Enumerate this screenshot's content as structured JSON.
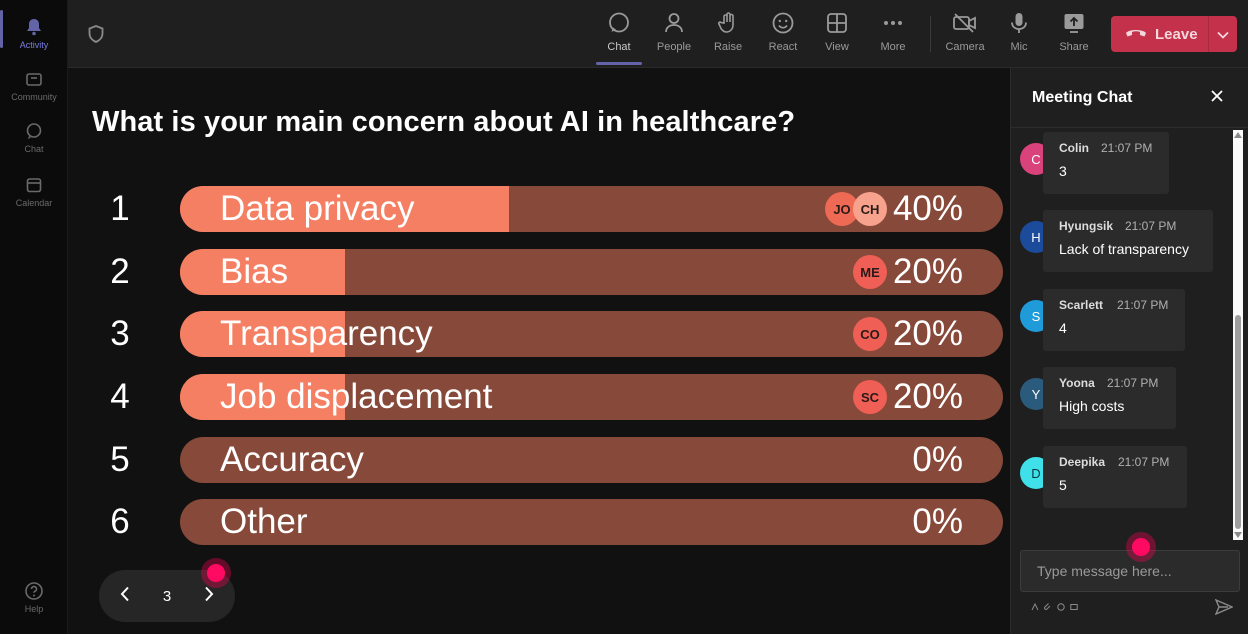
{
  "rail": {
    "items": [
      {
        "label": "Activity",
        "icon": "bell-icon"
      },
      {
        "label": "Community",
        "icon": "community-icon"
      },
      {
        "label": "Chat",
        "icon": "chat-icon"
      },
      {
        "label": "Calendar",
        "icon": "calendar-icon"
      }
    ],
    "help_label": "Help"
  },
  "toolbar": {
    "buttons": [
      {
        "label": "Chat",
        "icon": "chat-bubble-icon"
      },
      {
        "label": "People",
        "icon": "people-icon"
      },
      {
        "label": "Raise",
        "icon": "hand-icon"
      },
      {
        "label": "React",
        "icon": "smile-icon"
      },
      {
        "label": "View",
        "icon": "grid-icon"
      },
      {
        "label": "More",
        "icon": "more-icon"
      },
      {
        "label": "Camera",
        "icon": "camera-off-icon"
      },
      {
        "label": "Mic",
        "icon": "mic-icon"
      },
      {
        "label": "Share",
        "icon": "share-icon"
      }
    ],
    "leave_label": "Leave"
  },
  "poll": {
    "question": "What is your main concern about AI in healthcare?",
    "options": [
      {
        "num": "1",
        "label": "Data privacy",
        "pct": "40%",
        "fraction": 0.4,
        "voters": [
          {
            "initials": "JO",
            "color": "#ef6a55"
          },
          {
            "initials": "CH",
            "color": "#f7a28d"
          }
        ]
      },
      {
        "num": "2",
        "label": "Bias",
        "pct": "20%",
        "fraction": 0.2,
        "voters": [
          {
            "initials": "ME",
            "color": "#ef5f55"
          }
        ]
      },
      {
        "num": "3",
        "label": "Transparency",
        "pct": "20%",
        "fraction": 0.2,
        "voters": [
          {
            "initials": "CO",
            "color": "#ef5f55"
          }
        ]
      },
      {
        "num": "4",
        "label": "Job displacement",
        "pct": "20%",
        "fraction": 0.2,
        "voters": [
          {
            "initials": "SC",
            "color": "#ef5f55"
          }
        ]
      },
      {
        "num": "5",
        "label": "Accuracy",
        "pct": "0%",
        "fraction": 0,
        "voters": []
      },
      {
        "num": "6",
        "label": "Other",
        "pct": "0%",
        "fraction": 0,
        "voters": []
      }
    ],
    "page": "3",
    "colors": {
      "fill": "#f47f63",
      "track": "#86493a"
    }
  },
  "chat": {
    "title": "Meeting Chat",
    "messages": [
      {
        "initial": "C",
        "author": "Colin",
        "time": "21:07 PM",
        "text": "3",
        "color": "#d9427a"
      },
      {
        "initial": "H",
        "author": "Hyungsik",
        "time": "21:07 PM",
        "text": "Lack of transparency",
        "color": "#1b4b9a"
      },
      {
        "initial": "S",
        "author": "Scarlett",
        "time": "21:07 PM",
        "text": "4",
        "color": "#1f9bd9"
      },
      {
        "initial": "Y",
        "author": "Yoona",
        "time": "21:07 PM",
        "text": "High costs",
        "color": "#2a5b7c"
      },
      {
        "initial": "D",
        "author": "Deepika",
        "time": "21:07 PM",
        "text": "5",
        "color": "#3fe0ea"
      }
    ],
    "input_placeholder": "Type message here..."
  }
}
